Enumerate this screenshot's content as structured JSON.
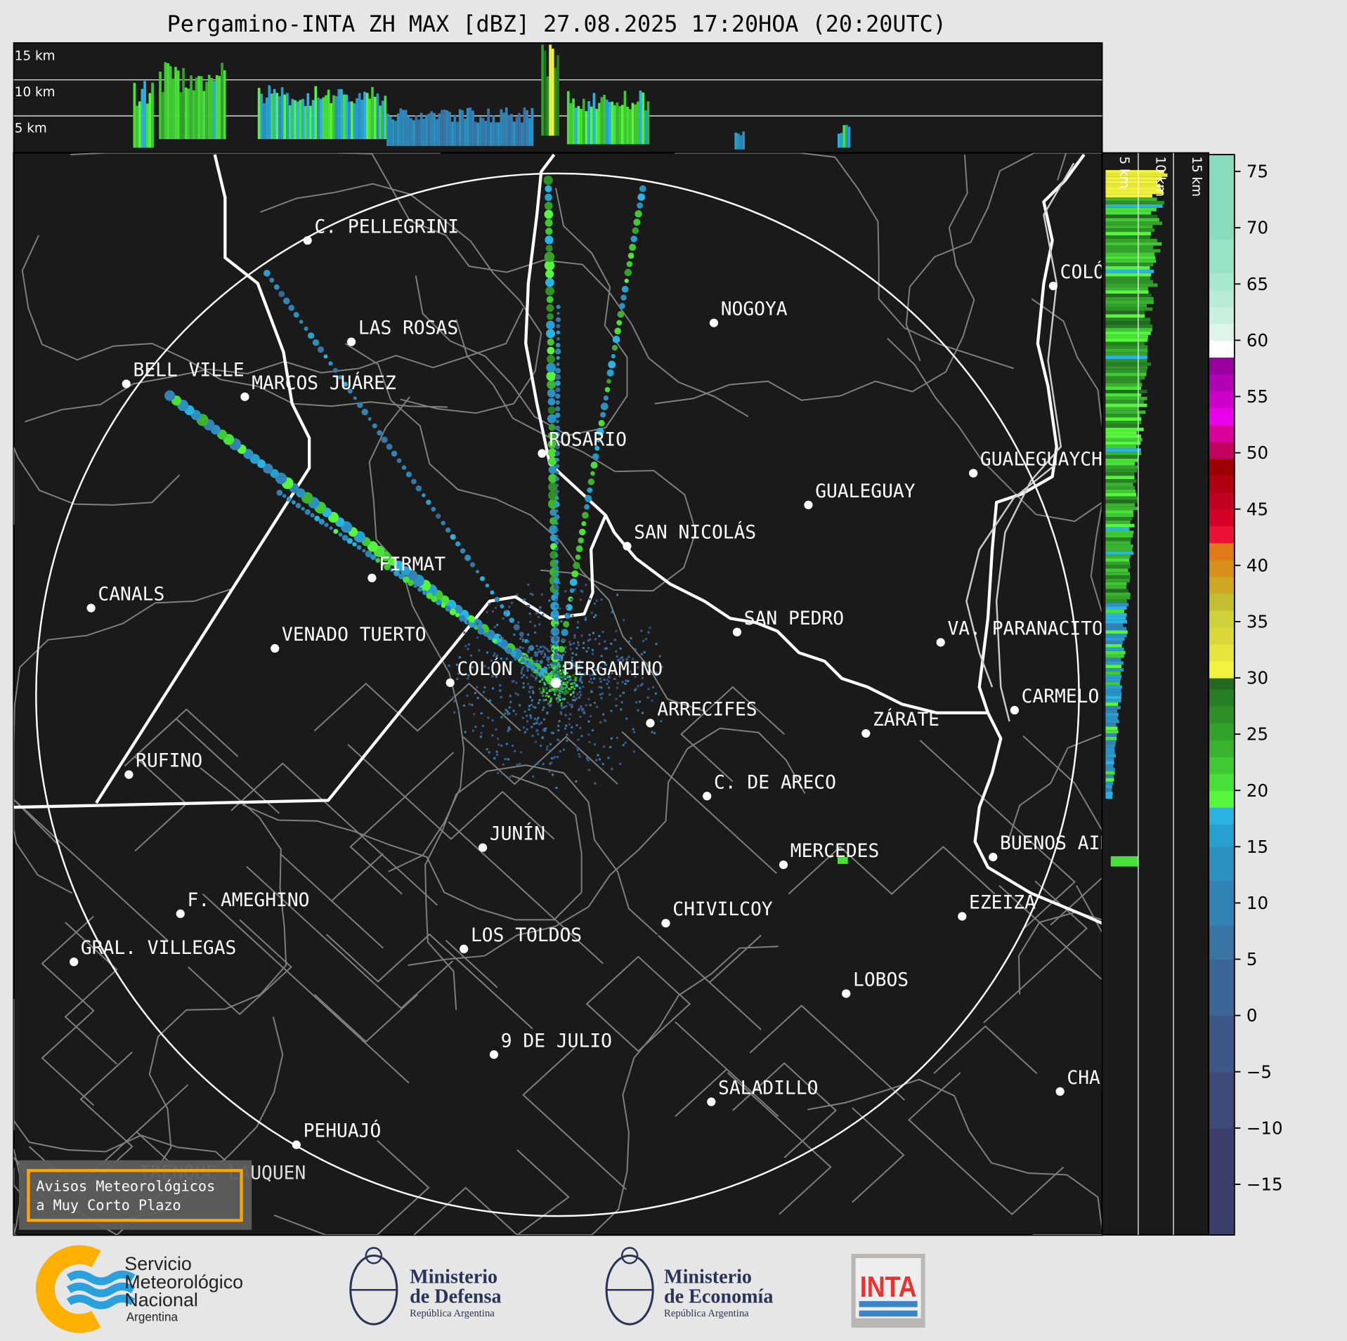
{
  "title": "Pergamino-INTA ZH MAX [dBZ] 27.08.2025 17:20HOA (20:20UTC)",
  "top_panel": {
    "height_labels": [
      "15 km",
      "10 km",
      "5 km"
    ]
  },
  "side_panel": {
    "height_labels": [
      "5 km",
      "10 km",
      "15 km"
    ]
  },
  "colorbar": {
    "unit": "dBZ",
    "range": [
      -19.5,
      76.5
    ],
    "ticks": [
      "75",
      "70",
      "65",
      "60",
      "55",
      "50",
      "45",
      "40",
      "35",
      "30",
      "25",
      "20",
      "15",
      "10",
      "5",
      "0",
      "−5",
      "−10",
      "−15"
    ],
    "tick_values": [
      75,
      70,
      65,
      60,
      55,
      50,
      45,
      40,
      35,
      30,
      25,
      20,
      15,
      10,
      5,
      0,
      -5,
      -10,
      -15
    ],
    "bins": [
      [
        -19.5,
        "#3c3f6c"
      ],
      [
        -10,
        "#3e4b79"
      ],
      [
        -5,
        "#3d5886"
      ],
      [
        0,
        "#3a6594"
      ],
      [
        5,
        "#3874a4"
      ],
      [
        8,
        "#3283b5"
      ],
      [
        12,
        "#2a91c1"
      ],
      [
        15,
        "#27a0cf"
      ],
      [
        17,
        "#2ab2e0"
      ],
      [
        18.5,
        "#55f63c"
      ],
      [
        20,
        "#4ae03a"
      ],
      [
        21.5,
        "#40c835"
      ],
      [
        23,
        "#39b330"
      ],
      [
        24.5,
        "#33a22b"
      ],
      [
        26,
        "#2d9128"
      ],
      [
        27.5,
        "#277f23"
      ],
      [
        29,
        "#216a1f"
      ],
      [
        30,
        "#f0f23e"
      ],
      [
        31.5,
        "#e4e63c"
      ],
      [
        33,
        "#d8d83a"
      ],
      [
        34.5,
        "#cfd23a"
      ],
      [
        36,
        "#c2c032"
      ],
      [
        37.5,
        "#cfa822"
      ],
      [
        39,
        "#d8901a"
      ],
      [
        40.5,
        "#e07a18"
      ],
      [
        42,
        "#ee1136"
      ],
      [
        43.5,
        "#d5002a"
      ],
      [
        45,
        "#c20022"
      ],
      [
        46.5,
        "#b00010"
      ],
      [
        48,
        "#9c0000"
      ],
      [
        49.5,
        "#c3005e"
      ],
      [
        51,
        "#d8009c"
      ],
      [
        52.5,
        "#ea00e8"
      ],
      [
        54,
        "#cc00c8"
      ],
      [
        55.5,
        "#b200b5"
      ],
      [
        57,
        "#9a00a0"
      ],
      [
        58.5,
        "#ffffff"
      ],
      [
        60,
        "#dff5ea"
      ],
      [
        61.5,
        "#c8f0dc"
      ],
      [
        63,
        "#b8ecd6"
      ],
      [
        64.5,
        "#a8e8cc"
      ],
      [
        66,
        "#98e2c6"
      ],
      [
        69,
        "#88dcbe"
      ]
    ]
  },
  "cities": [
    "C. PELLEGRINI",
    "LAS ROSAS",
    "BELL VILLE",
    "MARCOS JUÁREZ",
    "NOGOYA",
    "ROSARIO",
    "GUALEGUAY",
    "GUALEGUAYCHÚ",
    "SAN NICOLÁS",
    "FIRMAT",
    "CANALS",
    "SAN PEDRO",
    "VA. PARANACITO",
    "VENADO TUERTO",
    "COLÓN",
    "PERGAMINO",
    "ARRECIFES",
    "CARMELO",
    "ZÁRATE",
    "RUFINO",
    "C. DE ARECO",
    "JUNÍN",
    "MERCEDES",
    "BUENOS AIRES",
    "F. AMEGHINO",
    "EZEIZA",
    "CHIVILCOY",
    "GRAL. VILLEGAS",
    "LOS TOLDOS",
    "LOBOS",
    "9 DE JULIO",
    "SALADILLO",
    "CHASCOMÚS",
    "PEHUAJÓ",
    "TRENQUE LAUQUEN",
    "COLÓN"
  ],
  "radar_site": "PERGAMINO",
  "warning_box": {
    "line1": "Avisos Meteorológicos",
    "line2": "a Muy Corto Plazo",
    "border_color": "#ffa500"
  },
  "logos": {
    "smn": [
      "Servicio",
      "Meteorológico",
      "Nacional",
      "Argentina"
    ],
    "defensa": [
      "Ministerio",
      "de Defensa",
      "República Argentina"
    ],
    "economia": [
      "Ministerio",
      "de Economía",
      "República Argentina"
    ],
    "inta": "INTA"
  },
  "colors": {
    "background": "#1a1a1a",
    "page": "#e6e6e6",
    "province_border": "#ffffff",
    "department_border": "#808080",
    "range_ring": "#ffffff"
  }
}
